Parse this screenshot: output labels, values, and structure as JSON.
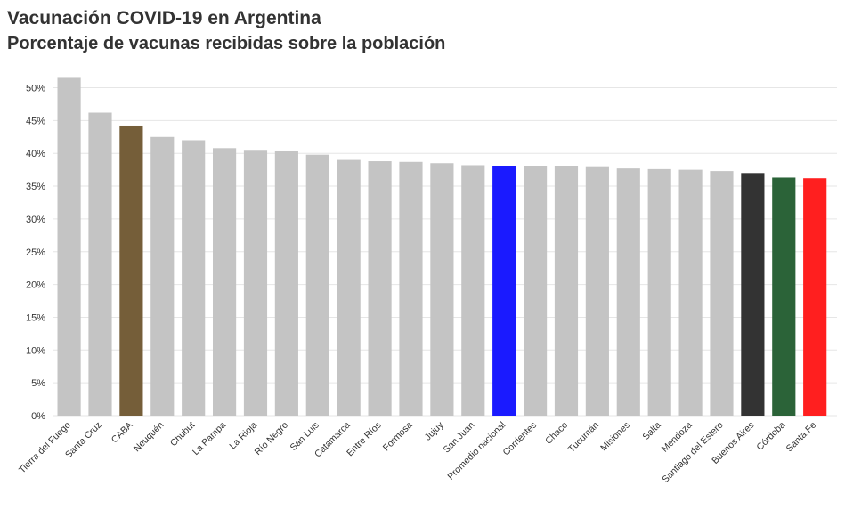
{
  "chart_data": {
    "type": "bar",
    "title": "Vacunación COVID-19 en Argentina",
    "subtitle": "Porcentaje de vacunas recibidas sobre la población",
    "xlabel": "",
    "ylabel": "",
    "ylim": [
      0,
      52
    ],
    "yticks": [
      0,
      5,
      10,
      15,
      20,
      25,
      30,
      35,
      40,
      45,
      50
    ],
    "ytick_labels": [
      "0%",
      "5%",
      "10%",
      "15%",
      "20%",
      "25%",
      "30%",
      "35%",
      "40%",
      "45%",
      "50%"
    ],
    "grid": "horizontal",
    "legend": "none",
    "default_color": "#c4c4c4",
    "categories": [
      "Tierra del Fuego",
      "Santa Cruz",
      "CABA",
      "Neuquén",
      "Chubut",
      "La Pampa",
      "La Rioja",
      "Río Negro",
      "San Luis",
      "Catamarca",
      "Entre Ríos",
      "Formosa",
      "Jujuy",
      "San Juan",
      "Promedio nacional",
      "Corrientes",
      "Chaco",
      "Tucumán",
      "Misiones",
      "Salta",
      "Mendoza",
      "Santiago del Estero",
      "Buenos Aires",
      "Córdoba",
      "Santa Fe"
    ],
    "values": [
      51.5,
      46.2,
      44.1,
      42.5,
      42.0,
      40.8,
      40.4,
      40.3,
      39.8,
      39.0,
      38.8,
      38.7,
      38.5,
      38.2,
      38.1,
      38.0,
      38.0,
      37.9,
      37.7,
      37.6,
      37.5,
      37.3,
      37.0,
      36.3,
      36.2
    ],
    "highlight_colors": {
      "CABA": "#755e39",
      "Promedio nacional": "#1a1aff",
      "Buenos Aires": "#333333",
      "Córdoba": "#2b6338",
      "Santa Fe": "#ff1f1f"
    }
  }
}
